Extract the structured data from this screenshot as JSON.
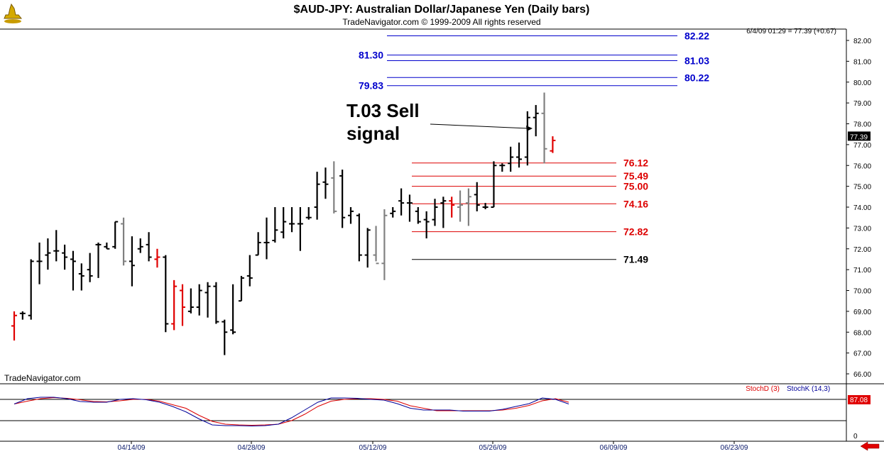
{
  "header": {
    "title": "$AUD-JPY:  Australian Dollar/Japanese Yen  (Daily bars)",
    "subtitle": "TradeNavigator.com © 1999-2009 All rights reserved",
    "quote": "6/4/09 01:29 = 77.39 (+0.67)",
    "watermark": "TradeNavigator.com",
    "logo_icon": "genie-lamp-icon"
  },
  "colors": {
    "level_blue": "#0000cc",
    "level_red": "#dd0000",
    "level_black": "#000000",
    "bar_black": "#000000",
    "bar_gray": "#808080",
    "bar_red": "#e00000",
    "stoch_d": "#dd0000",
    "stoch_k": "#000099"
  },
  "chart_data": [
    {
      "type": "bar",
      "subtype": "ohlc",
      "yaxis": {
        "min": 65.5,
        "max": 82.5,
        "ticks": [
          "82.00",
          "81.00",
          "80.00",
          "79.00",
          "78.00",
          "77.00",
          "76.00",
          "75.00",
          "74.00",
          "73.00",
          "72.00",
          "71.00",
          "70.00",
          "69.00",
          "68.00",
          "67.00",
          "66.00"
        ],
        "current_label": "77.39"
      },
      "xaxis": {
        "date_labels": [
          "04/14/09",
          "04/28/09",
          "05/12/09",
          "05/26/09",
          "06/09/09",
          "06/23/09"
        ]
      },
      "bars": [
        {
          "o": 68.3,
          "h": 69.0,
          "l": 67.6,
          "c": 68.8,
          "color": "red"
        },
        {
          "o": 68.9,
          "h": 69.0,
          "l": 68.6,
          "c": 68.9,
          "color": "black"
        },
        {
          "o": 68.8,
          "h": 71.5,
          "l": 68.6,
          "c": 71.4,
          "color": "black"
        },
        {
          "o": 71.4,
          "h": 72.3,
          "l": 70.3,
          "c": 71.4,
          "color": "black"
        },
        {
          "o": 71.7,
          "h": 72.5,
          "l": 71.0,
          "c": 71.8,
          "color": "black"
        },
        {
          "o": 71.9,
          "h": 72.9,
          "l": 71.4,
          "c": 71.9,
          "color": "black"
        },
        {
          "o": 71.8,
          "h": 72.2,
          "l": 71.0,
          "c": 71.6,
          "color": "black"
        },
        {
          "o": 71.5,
          "h": 71.9,
          "l": 70.0,
          "c": 71.4,
          "color": "black"
        },
        {
          "o": 70.8,
          "h": 71.3,
          "l": 70.0,
          "c": 70.7,
          "color": "black"
        },
        {
          "o": 71.0,
          "h": 71.8,
          "l": 70.4,
          "c": 70.7,
          "color": "black"
        },
        {
          "o": 72.2,
          "h": 72.3,
          "l": 70.6,
          "c": 72.2,
          "color": "black"
        },
        {
          "o": 72.1,
          "h": 72.3,
          "l": 72.0,
          "c": 72.0,
          "color": "black"
        },
        {
          "o": 72.1,
          "h": 73.3,
          "l": 72.0,
          "c": 73.3,
          "color": "black"
        },
        {
          "o": 73.2,
          "h": 73.5,
          "l": 71.2,
          "c": 71.4,
          "color": "gray"
        },
        {
          "o": 71.4,
          "h": 72.6,
          "l": 70.2,
          "c": 71.2,
          "color": "black"
        },
        {
          "o": 72.0,
          "h": 72.5,
          "l": 71.8,
          "c": 72.1,
          "color": "black"
        },
        {
          "o": 72.2,
          "h": 72.8,
          "l": 71.4,
          "c": 71.6,
          "color": "black"
        },
        {
          "o": 71.5,
          "h": 72.0,
          "l": 71.1,
          "c": 71.6,
          "color": "red"
        },
        {
          "o": 71.6,
          "h": 71.7,
          "l": 68.0,
          "c": 68.4,
          "color": "black"
        },
        {
          "o": 68.4,
          "h": 70.5,
          "l": 68.1,
          "c": 70.2,
          "color": "red"
        },
        {
          "o": 70.0,
          "h": 70.3,
          "l": 68.3,
          "c": 69.2,
          "color": "red"
        },
        {
          "o": 69.0,
          "h": 70.1,
          "l": 68.9,
          "c": 69.2,
          "color": "black"
        },
        {
          "o": 69.2,
          "h": 70.3,
          "l": 68.8,
          "c": 70.0,
          "color": "black"
        },
        {
          "o": 69.9,
          "h": 70.4,
          "l": 68.7,
          "c": 70.2,
          "color": "black"
        },
        {
          "o": 70.2,
          "h": 70.4,
          "l": 68.4,
          "c": 68.5,
          "color": "black"
        },
        {
          "o": 68.5,
          "h": 68.6,
          "l": 66.9,
          "c": 68.0,
          "color": "black"
        },
        {
          "o": 68.1,
          "h": 70.3,
          "l": 67.9,
          "c": 68.0,
          "color": "black"
        },
        {
          "o": 69.5,
          "h": 70.7,
          "l": 69.5,
          "c": 70.6,
          "color": "black"
        },
        {
          "o": 70.7,
          "h": 71.7,
          "l": 70.2,
          "c": 70.6,
          "color": "black"
        },
        {
          "o": 71.7,
          "h": 72.8,
          "l": 71.7,
          "c": 72.3,
          "color": "black"
        },
        {
          "o": 72.3,
          "h": 73.5,
          "l": 71.5,
          "c": 72.3,
          "color": "black"
        },
        {
          "o": 72.4,
          "h": 74.0,
          "l": 72.3,
          "c": 72.9,
          "color": "black"
        },
        {
          "o": 72.8,
          "h": 74.0,
          "l": 72.5,
          "c": 73.3,
          "color": "black"
        },
        {
          "o": 73.2,
          "h": 74.0,
          "l": 72.8,
          "c": 73.2,
          "color": "black"
        },
        {
          "o": 73.2,
          "h": 74.0,
          "l": 71.9,
          "c": 73.2,
          "color": "black"
        },
        {
          "o": 73.5,
          "h": 74.0,
          "l": 73.4,
          "c": 73.5,
          "color": "black"
        },
        {
          "o": 74.0,
          "h": 75.7,
          "l": 73.4,
          "c": 75.1,
          "color": "black"
        },
        {
          "o": 75.2,
          "h": 75.9,
          "l": 74.4,
          "c": 75.1,
          "color": "black"
        },
        {
          "o": 75.4,
          "h": 76.2,
          "l": 73.7,
          "c": 73.8,
          "color": "gray"
        },
        {
          "o": 75.5,
          "h": 75.8,
          "l": 73.0,
          "c": 73.5,
          "color": "black"
        },
        {
          "o": 73.6,
          "h": 74.0,
          "l": 73.2,
          "c": 73.8,
          "color": "black"
        },
        {
          "o": 73.6,
          "h": 73.7,
          "l": 71.4,
          "c": 71.7,
          "color": "black"
        },
        {
          "o": 71.7,
          "h": 73.0,
          "l": 71.1,
          "c": 72.9,
          "color": "black"
        },
        {
          "o": 71.7,
          "h": 73.1,
          "l": 71.4,
          "c": 71.3,
          "color": "gray"
        },
        {
          "o": 71.3,
          "h": 73.9,
          "l": 70.5,
          "c": 73.6,
          "color": "gray"
        },
        {
          "o": 73.7,
          "h": 74.0,
          "l": 73.5,
          "c": 73.8,
          "color": "black"
        },
        {
          "o": 74.3,
          "h": 74.9,
          "l": 73.6,
          "c": 74.2,
          "color": "black"
        },
        {
          "o": 74.2,
          "h": 74.6,
          "l": 73.3,
          "c": 74.2,
          "color": "black"
        },
        {
          "o": 73.8,
          "h": 74.0,
          "l": 73.2,
          "c": 73.3,
          "color": "black"
        },
        {
          "o": 73.4,
          "h": 73.8,
          "l": 72.5,
          "c": 73.3,
          "color": "black"
        },
        {
          "o": 73.4,
          "h": 74.4,
          "l": 73.1,
          "c": 74.0,
          "color": "black"
        },
        {
          "o": 74.2,
          "h": 74.5,
          "l": 73.0,
          "c": 74.3,
          "color": "black"
        },
        {
          "o": 74.3,
          "h": 74.5,
          "l": 73.5,
          "c": 74.1,
          "color": "red"
        },
        {
          "o": 74.0,
          "h": 74.8,
          "l": 73.3,
          "c": 74.1,
          "color": "gray"
        },
        {
          "o": 74.2,
          "h": 74.9,
          "l": 73.1,
          "c": 74.5,
          "color": "gray"
        },
        {
          "o": 74.6,
          "h": 75.2,
          "l": 73.8,
          "c": 74.1,
          "color": "black"
        },
        {
          "o": 74.0,
          "h": 74.2,
          "l": 73.9,
          "c": 74.0,
          "color": "black"
        },
        {
          "o": 74.0,
          "h": 76.2,
          "l": 74.0,
          "c": 76.0,
          "color": "black"
        },
        {
          "o": 76.0,
          "h": 76.1,
          "l": 75.7,
          "c": 76.0,
          "color": "black"
        },
        {
          "o": 76.1,
          "h": 76.9,
          "l": 75.7,
          "c": 76.4,
          "color": "black"
        },
        {
          "o": 76.4,
          "h": 77.1,
          "l": 75.9,
          "c": 76.3,
          "color": "black"
        },
        {
          "o": 76.4,
          "h": 78.6,
          "l": 76.0,
          "c": 78.3,
          "color": "black"
        },
        {
          "o": 78.3,
          "h": 78.9,
          "l": 77.4,
          "c": 78.5,
          "color": "black"
        },
        {
          "o": 78.5,
          "h": 79.5,
          "l": 76.1,
          "c": 76.8,
          "color": "gray"
        },
        {
          "o": 76.7,
          "h": 77.4,
          "l": 76.6,
          "c": 77.2,
          "color": "red"
        }
      ],
      "levels": [
        {
          "value": 82.22,
          "label": "82.22",
          "color": "blue"
        },
        {
          "value": 81.3,
          "label": "81.30",
          "color": "blue"
        },
        {
          "value": 81.03,
          "label": "81.03",
          "color": "blue"
        },
        {
          "value": 80.22,
          "label": "80.22",
          "color": "blue"
        },
        {
          "value": 79.83,
          "label": "79.83",
          "color": "blue"
        },
        {
          "value": 76.12,
          "label": "76.12",
          "color": "red"
        },
        {
          "value": 75.49,
          "label": "75.49",
          "color": "red"
        },
        {
          "value": 75.0,
          "label": "75.00",
          "color": "red"
        },
        {
          "value": 74.16,
          "label": "74.16",
          "color": "red"
        },
        {
          "value": 72.82,
          "label": "72.82",
          "color": "red"
        },
        {
          "value": 71.49,
          "label": "71.49",
          "color": "black"
        }
      ],
      "annotations": [
        {
          "text_lines": [
            "T.03 Sell",
            "signal"
          ],
          "points_to_value": 78.0
        }
      ]
    },
    {
      "type": "line",
      "name": "stochastic",
      "series": [
        {
          "name": "StochD (3)",
          "color": "red",
          "values": [
            67,
            75,
            82,
            85,
            83,
            79,
            74,
            73,
            76,
            80,
            80,
            75,
            65,
            55,
            35,
            18,
            10,
            8,
            7,
            8,
            10,
            20,
            38,
            60,
            75,
            80,
            82,
            82,
            80,
            75,
            62,
            55,
            48,
            48,
            48,
            48,
            48,
            50,
            55,
            63,
            76,
            82,
            72
          ]
        },
        {
          "name": "StochK (14,3)",
          "color": "blue",
          "values": [
            67,
            82,
            86,
            86,
            82,
            74,
            72,
            72,
            80,
            82,
            79,
            72,
            60,
            45,
            25,
            8,
            6,
            6,
            5,
            6,
            10,
            28,
            50,
            72,
            84,
            84,
            83,
            80,
            78,
            68,
            55,
            50,
            50,
            50,
            47,
            47,
            47,
            52,
            60,
            68,
            84,
            80,
            67
          ]
        }
      ],
      "ylim": [
        0,
        100
      ],
      "levels": [
        80,
        20
      ],
      "axis_label": "0",
      "current_label": "87.08"
    }
  ]
}
